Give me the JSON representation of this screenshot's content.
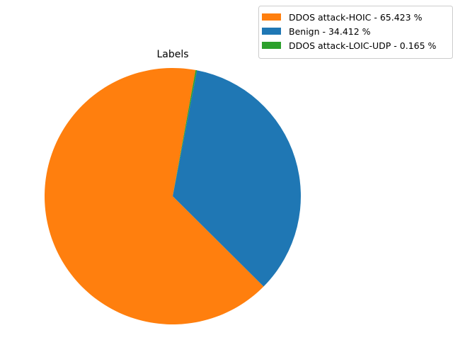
{
  "chart_data": {
    "type": "pie",
    "title": "Labels",
    "slices": [
      {
        "label": "DDOS attack-HOIC - 65.423 %",
        "value": 65.423,
        "color": "#ff7f0e"
      },
      {
        "label": "Benign - 34.412 %",
        "value": 34.412,
        "color": "#1f77b4"
      },
      {
        "label": "DDOS attack-LOIC-UDP - 0.165 %",
        "value": 0.165,
        "color": "#2ca02c"
      }
    ],
    "legend_position": "top-right"
  }
}
